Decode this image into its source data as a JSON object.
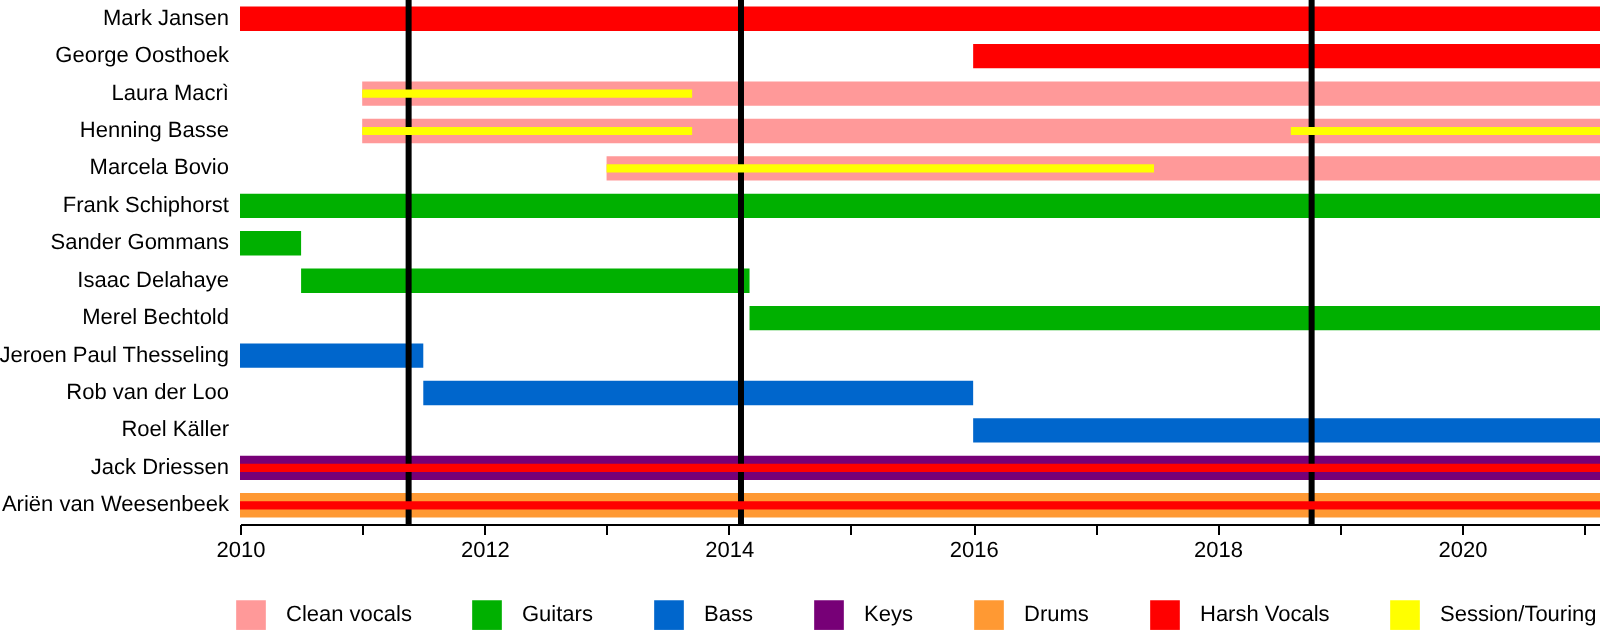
{
  "chart_data": {
    "type": "bar",
    "orientation": "horizontal",
    "legend": "bottom",
    "grid": false,
    "categories": [
      "Mark Jansen",
      "George Oosthoek",
      "Laura Macrì",
      "Henning Basse",
      "Marcela Bovio",
      "Frank Schiphorst",
      "Sander Gommans",
      "Isaac Delahaye",
      "Merel Bechtold",
      "Jeroen Paul Thesseling",
      "Rob van der Loo",
      "Roel Käller",
      "Jack Driessen",
      "Ariën van Weesenbeek"
    ],
    "xlim": [
      2010,
      2021.13
    ],
    "xticks": [
      2010,
      {
        "value": 2011,
        "label": null
      },
      2012,
      {
        "value": 2013,
        "label": null
      },
      2014,
      {
        "value": 2015,
        "label": null
      },
      2016,
      {
        "value": 2017,
        "label": null
      },
      2018,
      {
        "value": 2019,
        "label": null
      },
      2020,
      {
        "value": 2021,
        "label": null
      }
    ],
    "ref_lines": [
      {
        "axis": "x",
        "value": 2011.38,
        "color": "#000000"
      },
      {
        "axis": "x",
        "value": 2014.1,
        "color": "#000000"
      },
      {
        "axis": "x",
        "value": 2018.77,
        "color": "#000000"
      }
    ],
    "series": [
      {
        "name": "Clean vocals",
        "color": "#ff9999",
        "base": [
          null,
          null,
          2011,
          2011,
          2013,
          null,
          null,
          null,
          null,
          null,
          null,
          null,
          null,
          null
        ],
        "values": [
          null,
          null,
          10.13,
          10.13,
          8.13,
          null,
          null,
          null,
          null,
          null,
          null,
          null,
          null,
          null
        ]
      },
      {
        "name": "Guitars",
        "color": "#00b000",
        "base": [
          null,
          null,
          null,
          null,
          null,
          2010,
          2010,
          2010.5,
          2014.17,
          null,
          null,
          null,
          null,
          null
        ],
        "values": [
          null,
          null,
          null,
          null,
          null,
          11.13,
          0.5,
          3.67,
          6.96,
          null,
          null,
          null,
          null,
          null
        ]
      },
      {
        "name": "Bass",
        "color": "#0066cc",
        "base": [
          null,
          null,
          null,
          null,
          null,
          null,
          null,
          null,
          null,
          2010,
          2011.5,
          2016,
          null,
          null
        ],
        "values": [
          null,
          null,
          null,
          null,
          null,
          null,
          null,
          null,
          null,
          1.5,
          4.5,
          5.13,
          null,
          null
        ]
      },
      {
        "name": "Keys",
        "color": "#770077",
        "base": [
          null,
          null,
          null,
          null,
          null,
          null,
          null,
          null,
          null,
          null,
          null,
          null,
          2010,
          null
        ],
        "values": [
          null,
          null,
          null,
          null,
          null,
          null,
          null,
          null,
          null,
          null,
          null,
          null,
          11.13,
          null
        ]
      },
      {
        "name": "Drums",
        "color": "#ff9933",
        "base": [
          null,
          null,
          null,
          null,
          null,
          null,
          null,
          null,
          null,
          null,
          null,
          null,
          null,
          2010
        ],
        "values": [
          null,
          null,
          null,
          null,
          null,
          null,
          null,
          null,
          null,
          null,
          null,
          null,
          null,
          11.13
        ]
      },
      {
        "name": "Harsh Vocals",
        "color": "#ff0000",
        "base": [
          2010,
          2016,
          null,
          null,
          null,
          null,
          null,
          null,
          null,
          null,
          null,
          null,
          2010,
          2010
        ],
        "values": [
          11.13,
          5.13,
          null,
          null,
          null,
          null,
          null,
          null,
          null,
          null,
          null,
          null,
          11.13,
          11.13
        ]
      },
      {
        "name": "Session/Touring",
        "color": "#ffff00",
        "base": [
          null,
          null,
          2011,
          2011,
          2013,
          null,
          null,
          null,
          null,
          null,
          null,
          null,
          null,
          null
        ],
        "values": [
          null,
          null,
          2.7,
          2.7,
          4.48,
          null,
          null,
          null,
          null,
          null,
          null,
          null,
          null,
          null
        ]
      },
      {
        "color": "#ffff00",
        "base": [
          null,
          null,
          null,
          2018.6,
          null,
          null,
          null,
          null,
          null,
          null,
          null,
          null,
          null,
          null
        ],
        "values": [
          null,
          null,
          null,
          2.53,
          null,
          null,
          null,
          null,
          null,
          null,
          null,
          null,
          null,
          null
        ]
      }
    ]
  }
}
